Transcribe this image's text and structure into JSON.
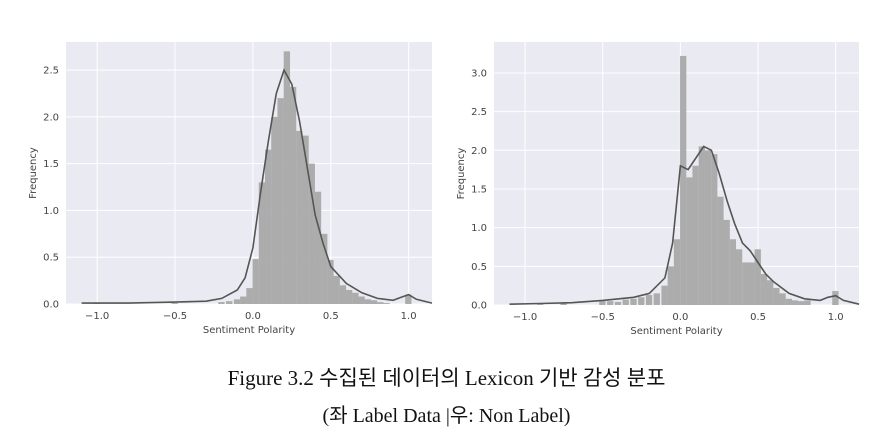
{
  "figure": {
    "caption_line1": "Figure 3.2 수집된 데이터의 Lexicon 기반 감성 분포",
    "caption_line2": "(좌 Label Data |우: Non Label)"
  },
  "style": {
    "panel_bg": "#eaeaf2",
    "bar_color": "#a9a9a9",
    "kde_color": "#555555",
    "grid_color": "#ffffff"
  },
  "chart_data": [
    {
      "type": "bar",
      "subtype": "histogram-with-kde",
      "xlabel": "Sentiment Polarity",
      "ylabel": "Frequency",
      "xlim": [
        -1.2,
        1.15
      ],
      "ylim": [
        0,
        2.8
      ],
      "xticks": [
        -1.0,
        -0.5,
        0.0,
        0.5,
        1.0
      ],
      "xtick_labels": [
        "−1.0",
        "−0.5",
        "0.0",
        "0.5",
        "1.0"
      ],
      "yticks": [
        0.0,
        0.5,
        1.0,
        1.5,
        2.0,
        2.5
      ],
      "ytick_labels": [
        "0.0",
        "0.5",
        "1.0",
        "1.5",
        "2.0",
        "2.5"
      ],
      "grid": true,
      "bin_width": 0.0444,
      "bins": [
        [
          -1.0,
          0.01
        ],
        [
          -0.5,
          0.01
        ],
        [
          -0.2,
          0.02
        ],
        [
          -0.15,
          0.03
        ],
        [
          -0.1,
          0.05
        ],
        [
          -0.06,
          0.08
        ],
        [
          -0.02,
          0.17
        ],
        [
          0.02,
          0.48
        ],
        [
          0.06,
          1.3
        ],
        [
          0.1,
          1.65
        ],
        [
          0.14,
          2.0
        ],
        [
          0.18,
          2.2
        ],
        [
          0.22,
          2.7
        ],
        [
          0.26,
          2.32
        ],
        [
          0.3,
          1.85
        ],
        [
          0.34,
          1.8
        ],
        [
          0.38,
          1.5
        ],
        [
          0.42,
          1.2
        ],
        [
          0.46,
          0.75
        ],
        [
          0.5,
          0.47
        ],
        [
          0.54,
          0.3
        ],
        [
          0.58,
          0.2
        ],
        [
          0.62,
          0.15
        ],
        [
          0.66,
          0.12
        ],
        [
          0.7,
          0.08
        ],
        [
          0.74,
          0.05
        ],
        [
          0.78,
          0.04
        ],
        [
          0.82,
          0.02
        ],
        [
          0.86,
          0.01
        ],
        [
          1.0,
          0.1
        ]
      ],
      "kde": [
        [
          -1.1,
          0.01
        ],
        [
          -0.8,
          0.01
        ],
        [
          -0.5,
          0.02
        ],
        [
          -0.3,
          0.03
        ],
        [
          -0.2,
          0.06
        ],
        [
          -0.1,
          0.15
        ],
        [
          -0.05,
          0.28
        ],
        [
          0.0,
          0.6
        ],
        [
          0.05,
          1.2
        ],
        [
          0.1,
          1.75
        ],
        [
          0.15,
          2.25
        ],
        [
          0.2,
          2.5
        ],
        [
          0.25,
          2.35
        ],
        [
          0.3,
          1.95
        ],
        [
          0.35,
          1.45
        ],
        [
          0.4,
          0.95
        ],
        [
          0.45,
          0.65
        ],
        [
          0.5,
          0.4
        ],
        [
          0.6,
          0.22
        ],
        [
          0.7,
          0.12
        ],
        [
          0.8,
          0.06
        ],
        [
          0.9,
          0.04
        ],
        [
          0.95,
          0.07
        ],
        [
          1.0,
          0.1
        ],
        [
          1.05,
          0.05
        ],
        [
          1.15,
          0.01
        ]
      ]
    },
    {
      "type": "bar",
      "subtype": "histogram-with-kde",
      "xlabel": "Sentiment Polarity",
      "ylabel": "Frequency",
      "xlim": [
        -1.2,
        1.15
      ],
      "ylim": [
        0,
        3.4
      ],
      "xticks": [
        -1.0,
        -0.5,
        0.0,
        0.5,
        1.0
      ],
      "xtick_labels": [
        "−1.0",
        "−0.5",
        "0.0",
        "0.5",
        "1.0"
      ],
      "yticks": [
        0.0,
        0.5,
        1.0,
        1.5,
        2.0,
        2.5,
        3.0
      ],
      "ytick_labels": [
        "0.0",
        "0.5",
        "1.0",
        "1.5",
        "2.0",
        "2.5",
        "3.0"
      ],
      "grid": true,
      "bin_width": 0.0444,
      "bins": [
        [
          -0.9,
          0.01
        ],
        [
          -0.75,
          0.02
        ],
        [
          -0.5,
          0.05
        ],
        [
          -0.45,
          0.05
        ],
        [
          -0.4,
          0.04
        ],
        [
          -0.35,
          0.07
        ],
        [
          -0.3,
          0.08
        ],
        [
          -0.25,
          0.1
        ],
        [
          -0.2,
          0.13
        ],
        [
          -0.15,
          0.15
        ],
        [
          -0.1,
          0.25
        ],
        [
          -0.06,
          0.5
        ],
        [
          -0.02,
          0.85
        ],
        [
          0.02,
          3.22
        ],
        [
          0.06,
          1.65
        ],
        [
          0.1,
          1.8
        ],
        [
          0.14,
          2.05
        ],
        [
          0.18,
          2.0
        ],
        [
          0.22,
          1.95
        ],
        [
          0.26,
          1.4
        ],
        [
          0.3,
          1.1
        ],
        [
          0.34,
          0.85
        ],
        [
          0.38,
          0.72
        ],
        [
          0.42,
          0.55
        ],
        [
          0.46,
          0.55
        ],
        [
          0.5,
          0.72
        ],
        [
          0.54,
          0.4
        ],
        [
          0.58,
          0.32
        ],
        [
          0.62,
          0.22
        ],
        [
          0.66,
          0.15
        ],
        [
          0.7,
          0.08
        ],
        [
          0.74,
          0.06
        ],
        [
          0.78,
          0.05
        ],
        [
          0.82,
          0.06
        ],
        [
          1.0,
          0.18
        ]
      ],
      "kde": [
        [
          -1.1,
          0.01
        ],
        [
          -0.9,
          0.02
        ],
        [
          -0.7,
          0.03
        ],
        [
          -0.5,
          0.06
        ],
        [
          -0.3,
          0.1
        ],
        [
          -0.2,
          0.15
        ],
        [
          -0.1,
          0.35
        ],
        [
          -0.05,
          0.8
        ],
        [
          0.0,
          1.8
        ],
        [
          0.05,
          1.75
        ],
        [
          0.1,
          1.9
        ],
        [
          0.15,
          2.05
        ],
        [
          0.2,
          2.0
        ],
        [
          0.25,
          1.7
        ],
        [
          0.3,
          1.35
        ],
        [
          0.35,
          1.05
        ],
        [
          0.4,
          0.8
        ],
        [
          0.45,
          0.7
        ],
        [
          0.5,
          0.55
        ],
        [
          0.55,
          0.4
        ],
        [
          0.6,
          0.3
        ],
        [
          0.7,
          0.15
        ],
        [
          0.8,
          0.08
        ],
        [
          0.9,
          0.06
        ],
        [
          0.95,
          0.1
        ],
        [
          1.0,
          0.12
        ],
        [
          1.05,
          0.06
        ],
        [
          1.15,
          0.01
        ]
      ]
    }
  ]
}
